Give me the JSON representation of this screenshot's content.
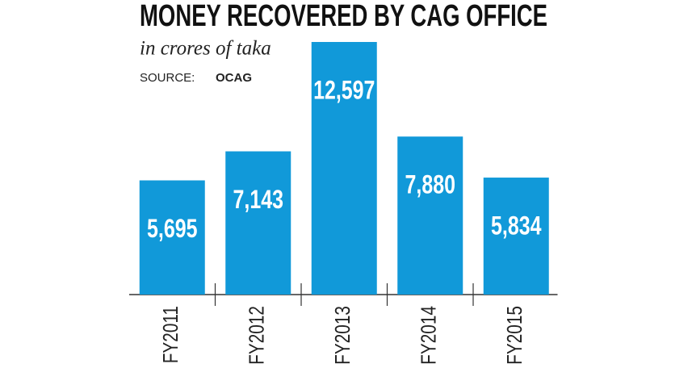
{
  "chart_data": {
    "type": "bar",
    "title": "MONEY RECOVERED BY CAG OFFICE",
    "subtitle": "in crores of taka",
    "source_label": "SOURCE:",
    "source": "OCAG",
    "categories": [
      "FY2011",
      "FY2012",
      "FY2013",
      "FY2014",
      "FY2015"
    ],
    "values": [
      5695,
      7143,
      12597,
      7880,
      5834
    ],
    "value_labels": [
      "5,695",
      "7,143",
      "12,597",
      "7,880",
      "5,834"
    ],
    "color": "#1199d9",
    "ylim": [
      0,
      13000
    ]
  }
}
